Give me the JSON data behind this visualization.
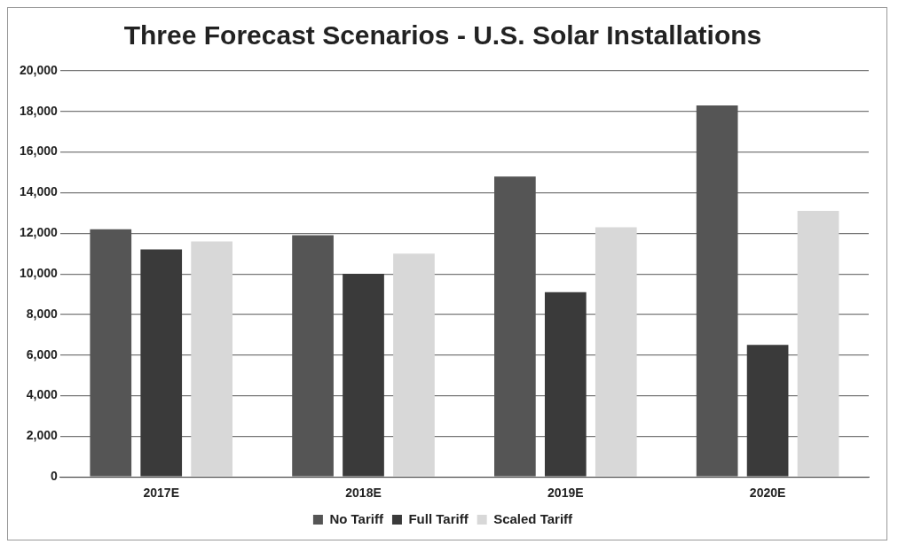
{
  "chart_data": {
    "type": "bar",
    "title": "Three Forecast Scenarios - U.S. Solar Installations",
    "categories": [
      "2017E",
      "2018E",
      "2019E",
      "2020E"
    ],
    "series": [
      {
        "name": "No Tariff",
        "color": "#555555",
        "values": [
          12200,
          11900,
          14800,
          18300
        ]
      },
      {
        "name": "Full Tariff",
        "color": "#3a3a3a",
        "values": [
          11200,
          10000,
          9100,
          6500
        ]
      },
      {
        "name": "Scaled Tariff",
        "color": "#d8d8d8",
        "values": [
          11600,
          11000,
          12300,
          13100
        ]
      }
    ],
    "ylim": [
      0,
      20000
    ],
    "yticks": [
      {
        "value": 0,
        "label": "0"
      },
      {
        "value": 2000,
        "label": "2,000"
      },
      {
        "value": 4000,
        "label": "4,000"
      },
      {
        "value": 6000,
        "label": "6,000"
      },
      {
        "value": 8000,
        "label": "8,000"
      },
      {
        "value": 10000,
        "label": "10,000"
      },
      {
        "value": 12000,
        "label": "12,000"
      },
      {
        "value": 14000,
        "label": "14,000"
      },
      {
        "value": 16000,
        "label": "16,000"
      },
      {
        "value": 18000,
        "label": "18,000"
      },
      {
        "value": 20000,
        "label": "20,000"
      }
    ],
    "grid": "y",
    "legend": "bottom"
  }
}
